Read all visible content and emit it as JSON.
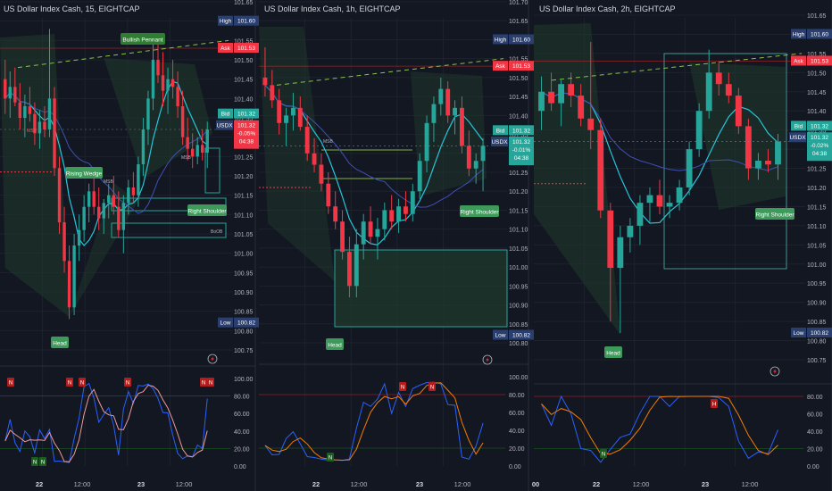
{
  "panels": [
    {
      "title": "US Dollar Index Cash, 15, EIGHTCAP",
      "x_labels": [
        "22",
        "12:00",
        "23",
        "12:00"
      ],
      "price_ticks": [
        "101.65",
        "101.60",
        "101.55",
        "101.50",
        "101.45",
        "101.40",
        "101.35",
        "101.30",
        "101.25",
        "101.20",
        "101.15",
        "101.10",
        "101.05",
        "101.00",
        "100.95",
        "100.90",
        "100.85",
        "100.80",
        "100.75"
      ],
      "osc_ticks": [
        "100.00",
        "80.00",
        "60.00",
        "40.00",
        "20.00",
        "0.00"
      ],
      "tags": {
        "high_label": "High",
        "high_value": "101.60",
        "ask_label": "Ask",
        "ask_value": "101.53",
        "bid_label": "Bid",
        "bid_value": "101.32",
        "symbol": "USDX",
        "symbol_price": "101.32",
        "change": "-0.05%",
        "countdown": "04:38",
        "low_label": "Low",
        "low_value": "100.82"
      },
      "annotations": [
        "Bullish Pennant",
        "Rising Wedge",
        "Right Shoulder",
        "Head"
      ],
      "small_labels": [
        "MSB",
        "MSB",
        "MSB",
        "BoOB"
      ],
      "osc_markers": [
        "N",
        "N",
        "N",
        "N",
        "N",
        "N",
        "N",
        "N"
      ]
    },
    {
      "title": "US Dollar Index Cash, 1h, EIGHTCAP",
      "x_labels": [
        "22",
        "12:00",
        "23",
        "12:00"
      ],
      "price_ticks": [
        "101.70",
        "101.65",
        "101.60",
        "101.55",
        "101.50",
        "101.45",
        "101.40",
        "101.35",
        "101.30",
        "101.25",
        "101.20",
        "101.15",
        "101.10",
        "101.05",
        "101.00",
        "100.95",
        "100.90",
        "100.85",
        "100.80"
      ],
      "osc_ticks": [
        "100.00",
        "80.00",
        "60.00",
        "40.00",
        "20.00",
        "0.00"
      ],
      "tags": {
        "high_label": "High",
        "high_value": "101.60",
        "ask_label": "Ask",
        "ask_value": "101.53",
        "bid_label": "Bid",
        "bid_value": "101.32",
        "symbol": "USDX",
        "symbol_price": "101.32",
        "change": "-0.01%",
        "countdown": "04:38",
        "low_label": "Low",
        "low_value": "100.82"
      },
      "annotations": [
        "Right Shoulder",
        "Head"
      ],
      "small_labels": [
        "MSB"
      ],
      "osc_markers": [
        "N",
        "N",
        "N"
      ]
    },
    {
      "title": "US Dollar Index Cash, 2h, EIGHTCAP",
      "x_labels": [
        "00",
        "22",
        "12:00",
        "23",
        "12:00"
      ],
      "price_ticks": [
        "101.65",
        "101.60",
        "101.55",
        "101.50",
        "101.45",
        "101.40",
        "101.35",
        "101.30",
        "101.25",
        "101.20",
        "101.15",
        "101.10",
        "101.05",
        "101.00",
        "100.95",
        "100.90",
        "100.85",
        "100.80",
        "100.75"
      ],
      "osc_ticks": [
        "80.00",
        "60.00",
        "40.00",
        "20.00",
        "0.00"
      ],
      "tags": {
        "high_label": "High",
        "high_value": "101.60",
        "ask_label": "Ask",
        "ask_value": "101.53",
        "bid_label": "Bid",
        "bid_value": "101.32",
        "symbol": "USDX",
        "symbol_price": "101.32",
        "change": "-0.02%",
        "countdown": "04:38",
        "low_label": "Low",
        "low_value": "100.82"
      },
      "annotations": [
        "Right Shoulder",
        "Head"
      ],
      "osc_markers": [
        "N",
        "H"
      ]
    }
  ],
  "colors": {
    "background": "#131722",
    "bull": "#26a69a",
    "bear": "#f23645",
    "bull_mid": "#2e8b7a",
    "high_tag": "#2a2e39",
    "ask_tag": "#f23645",
    "bid_tag": "#26a69a",
    "zone": "#1f3a2c",
    "annotation": "#2e7d32",
    "annotation_alt": "#3d9a5b",
    "ma_cyan": "#26c6da",
    "ma_blue": "#3f51b5",
    "osc_blue": "#2962ff",
    "osc_orange": "#f57c00",
    "osc_red": "#e53935"
  },
  "chart_data": [
    {
      "type": "candlestick",
      "timeframe": "15",
      "series": [
        {
          "name": "",
          "ohlc": [
            [
              101.45,
              101.5,
              101.36,
              101.4
            ],
            [
              101.4,
              101.47,
              101.35,
              101.43
            ],
            [
              101.43,
              101.48,
              101.38,
              101.39
            ],
            [
              101.39,
              101.44,
              101.32,
              101.35
            ],
            [
              101.35,
              101.41,
              101.3,
              101.38
            ],
            [
              101.38,
              101.43,
              101.34,
              101.36
            ],
            [
              101.36,
              101.39,
              101.28,
              101.31
            ],
            [
              101.31,
              101.37,
              101.27,
              101.34
            ],
            [
              101.34,
              101.38,
              101.3,
              101.32
            ],
            [
              101.32,
              101.58,
              101.3,
              101.4
            ],
            [
              101.4,
              101.43,
              101.2,
              101.22
            ],
            [
              101.22,
              101.25,
              101.05,
              101.08
            ],
            [
              101.08,
              101.12,
              100.95,
              100.98
            ],
            [
              100.98,
              101.02,
              100.83,
              100.86
            ],
            [
              100.86,
              101.05,
              100.84,
              101.02
            ],
            [
              101.02,
              101.1,
              100.98,
              101.06
            ],
            [
              101.06,
              101.15,
              101.03,
              101.12
            ],
            [
              101.12,
              101.18,
              101.08,
              101.16
            ],
            [
              101.16,
              101.2,
              101.1,
              101.12
            ],
            [
              101.12,
              101.17,
              101.06,
              101.09
            ],
            [
              101.09,
              101.14,
              101.05,
              101.13
            ],
            [
              101.13,
              101.18,
              101.09,
              101.15
            ],
            [
              101.15,
              101.2,
              101.1,
              101.12
            ],
            [
              101.12,
              101.16,
              101.04,
              101.06
            ],
            [
              101.06,
              101.15,
              101.0,
              101.13
            ],
            [
              101.13,
              101.19,
              101.1,
              101.17
            ],
            [
              101.17,
              101.21,
              101.13,
              101.15
            ],
            [
              101.15,
              101.25,
              101.12,
              101.23
            ],
            [
              101.23,
              101.35,
              101.2,
              101.32
            ],
            [
              101.32,
              101.42,
              101.28,
              101.4
            ],
            [
              101.4,
              101.55,
              101.37,
              101.5
            ],
            [
              101.5,
              101.56,
              101.44,
              101.46
            ],
            [
              101.46,
              101.52,
              101.38,
              101.42
            ],
            [
              101.42,
              101.48,
              101.36,
              101.45
            ],
            [
              101.45,
              101.5,
              101.4,
              101.43
            ],
            [
              101.43,
              101.47,
              101.35,
              101.38
            ],
            [
              101.38,
              101.42,
              101.28,
              101.3
            ],
            [
              101.3,
              101.35,
              101.24,
              101.27
            ],
            [
              101.27,
              101.31,
              101.22,
              101.25
            ],
            [
              101.25,
              101.3,
              101.23,
              101.28
            ],
            [
              101.28,
              101.32,
              101.24,
              101.26
            ],
            [
              101.26,
              101.34,
              101.22,
              101.32
            ]
          ]
        }
      ],
      "ylim": [
        100.75,
        101.65
      ],
      "oscillator": {
        "ylim": [
          0,
          100
        ],
        "levels": [
          80,
          20
        ]
      },
      "legend": "none",
      "grid": true
    },
    {
      "type": "candlestick",
      "timeframe": "1h",
      "series": [
        {
          "name": "",
          "ohlc": [
            [
              101.5,
              101.58,
              101.45,
              101.48
            ],
            [
              101.48,
              101.52,
              101.42,
              101.44
            ],
            [
              101.44,
              101.47,
              101.35,
              101.38
            ],
            [
              101.38,
              101.42,
              101.32,
              101.4
            ],
            [
              101.4,
              101.46,
              101.36,
              101.42
            ],
            [
              101.42,
              101.45,
              101.36,
              101.37
            ],
            [
              101.37,
              101.4,
              101.28,
              101.3
            ],
            [
              101.3,
              101.34,
              101.25,
              101.27
            ],
            [
              101.27,
              101.3,
              101.2,
              101.22
            ],
            [
              101.22,
              101.25,
              101.14,
              101.16
            ],
            [
              101.16,
              101.2,
              101.1,
              101.12
            ],
            [
              101.12,
              101.15,
              101.02,
              101.04
            ],
            [
              101.04,
              101.08,
              100.92,
              100.95
            ],
            [
              100.95,
              101.1,
              100.92,
              101.06
            ],
            [
              101.06,
              101.14,
              101.02,
              101.12
            ],
            [
              101.12,
              101.16,
              101.06,
              101.08
            ],
            [
              101.08,
              101.13,
              101.02,
              101.1
            ],
            [
              101.1,
              101.17,
              101.07,
              101.15
            ],
            [
              101.15,
              101.19,
              101.1,
              101.12
            ],
            [
              101.12,
              101.18,
              101.09,
              101.16
            ],
            [
              101.16,
              101.2,
              101.12,
              101.14
            ],
            [
              101.14,
              101.22,
              101.12,
              101.2
            ],
            [
              101.2,
              101.3,
              101.18,
              101.28
            ],
            [
              101.28,
              101.4,
              101.25,
              101.38
            ],
            [
              101.38,
              101.45,
              101.33,
              101.43
            ],
            [
              101.43,
              101.5,
              101.4,
              101.47
            ],
            [
              101.47,
              101.49,
              101.38,
              101.4
            ],
            [
              101.4,
              101.44,
              101.35,
              101.42
            ],
            [
              101.42,
              101.45,
              101.3,
              101.32
            ],
            [
              101.32,
              101.36,
              101.24,
              101.26
            ],
            [
              101.26,
              101.3,
              101.22,
              101.28
            ],
            [
              101.28,
              101.34,
              101.2,
              101.32
            ]
          ]
        }
      ],
      "ylim": [
        100.8,
        101.7
      ],
      "oscillator": {
        "ylim": [
          0,
          100
        ],
        "levels": [
          80,
          20
        ]
      },
      "legend": "none",
      "grid": true
    },
    {
      "type": "candlestick",
      "timeframe": "2h",
      "series": [
        {
          "name": "",
          "ohlc": [
            [
              101.4,
              101.49,
              101.35,
              101.45
            ],
            [
              101.45,
              101.5,
              101.4,
              101.42
            ],
            [
              101.42,
              101.48,
              101.36,
              101.47
            ],
            [
              101.47,
              101.5,
              101.41,
              101.44
            ],
            [
              101.44,
              101.47,
              101.36,
              101.38
            ],
            [
              101.38,
              101.58,
              101.3,
              101.35
            ],
            [
              101.35,
              101.38,
              101.12,
              101.14
            ],
            [
              101.14,
              101.16,
              100.85,
              100.99
            ],
            [
              100.99,
              101.1,
              100.82,
              101.07
            ],
            [
              101.07,
              101.12,
              101.03,
              101.1
            ],
            [
              101.1,
              101.18,
              101.05,
              101.16
            ],
            [
              101.16,
              101.2,
              101.11,
              101.18
            ],
            [
              101.18,
              101.22,
              101.13,
              101.15
            ],
            [
              101.15,
              101.18,
              101.12,
              101.16
            ],
            [
              101.16,
              101.22,
              101.14,
              101.2
            ],
            [
              101.2,
              101.32,
              101.18,
              101.3
            ],
            [
              101.3,
              101.42,
              101.28,
              101.4
            ],
            [
              101.4,
              101.56,
              101.38,
              101.5
            ],
            [
              101.5,
              101.53,
              101.44,
              101.47
            ],
            [
              101.47,
              101.5,
              101.42,
              101.44
            ],
            [
              101.44,
              101.46,
              101.34,
              101.36
            ],
            [
              101.36,
              101.38,
              101.22,
              101.25
            ],
            [
              101.25,
              101.29,
              101.22,
              101.27
            ],
            [
              101.27,
              101.3,
              101.24,
              101.26
            ],
            [
              101.26,
              101.34,
              101.22,
              101.32
            ]
          ]
        }
      ],
      "ylim": [
        100.75,
        101.65
      ],
      "oscillator": {
        "ylim": [
          0,
          80
        ],
        "levels": [
          80,
          20
        ]
      },
      "legend": "none",
      "grid": true
    }
  ]
}
